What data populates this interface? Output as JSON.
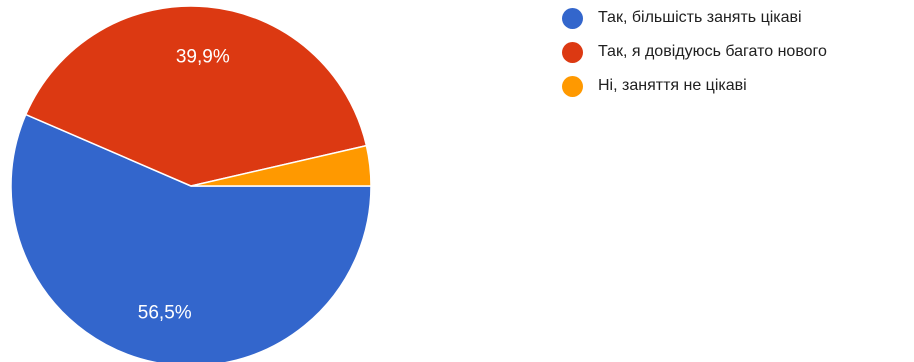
{
  "chart_data": {
    "type": "pie",
    "title": "",
    "slices": [
      {
        "label": "Так, більшість занять цікаві",
        "value": 56.5,
        "display": "56,5%",
        "color": "#3366cc"
      },
      {
        "label": "Так, я довідуюсь багато нового",
        "value": 39.9,
        "display": "39,9%",
        "color": "#dc3912"
      },
      {
        "label": "Ні, заняття не цікаві",
        "value": 3.6,
        "display": "",
        "color": "#ff9900"
      }
    ],
    "start_angle": "3 o'clock",
    "direction": "clockwise",
    "legend_position": "right"
  }
}
